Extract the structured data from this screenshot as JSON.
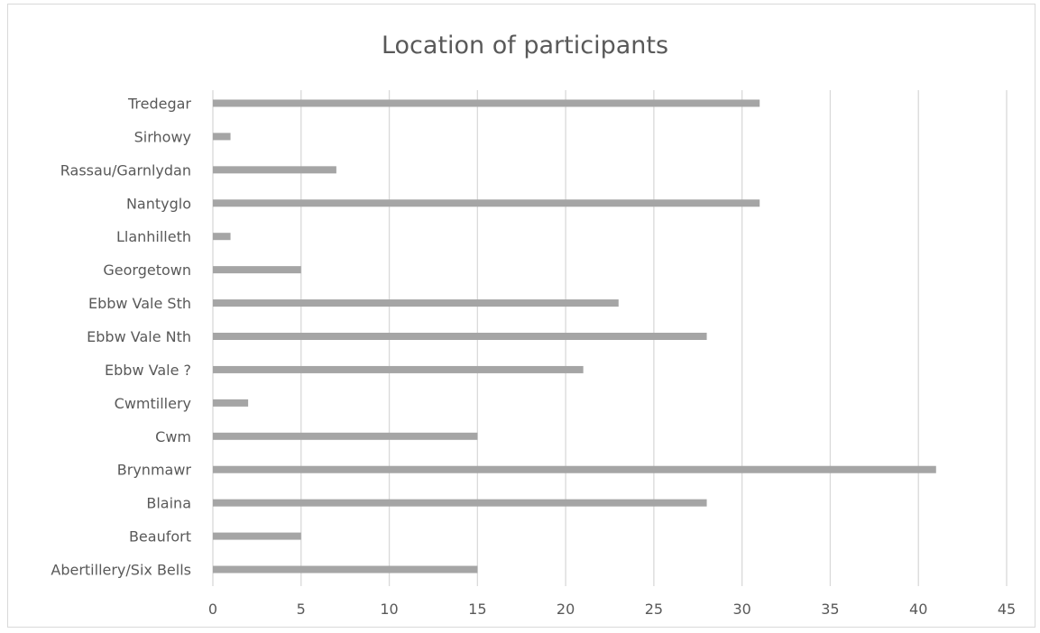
{
  "chart_data": {
    "type": "bar",
    "orientation": "horizontal",
    "title": "Location of participants",
    "xlabel": "",
    "ylabel": "",
    "categories": [
      "Abertillery/Six Bells",
      "Beaufort",
      "Blaina",
      "Brynmawr",
      "Cwm",
      "Cwmtillery",
      "Ebbw Vale ?",
      "Ebbw Vale Nth",
      "Ebbw Vale Sth",
      "Georgetown",
      "Llanhilleth",
      "Nantyglo",
      "Rassau/Garnlydan",
      "Sirhowy",
      "Tredegar"
    ],
    "values": [
      15,
      5,
      28,
      41,
      15,
      2,
      21,
      28,
      23,
      5,
      1,
      31,
      7,
      1,
      31
    ],
    "xlim": [
      0,
      45
    ],
    "xticks": [
      0,
      5,
      10,
      15,
      20,
      25,
      30,
      35,
      40,
      45
    ],
    "grid": "vertical",
    "legend": "none",
    "colors": {
      "bar": "#a5a5a5",
      "grid": "#d9d9d9",
      "text": "#595959"
    }
  }
}
